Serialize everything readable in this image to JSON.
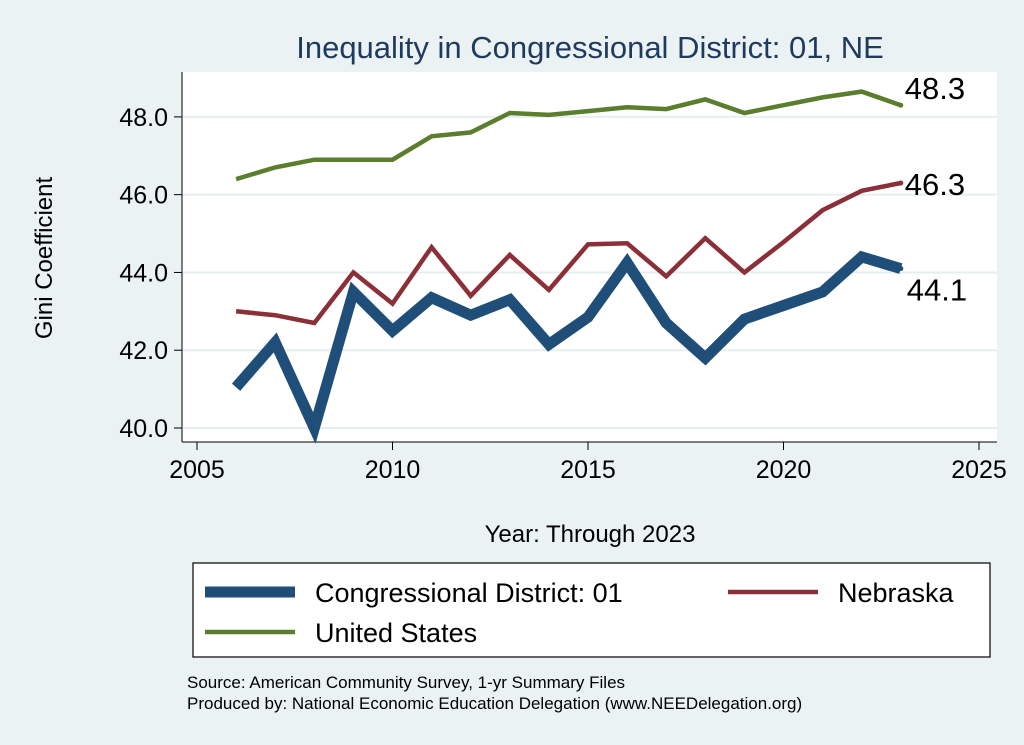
{
  "chart_data": {
    "type": "line",
    "title": "Inequality in Congressional District:  01, NE",
    "xlabel": "Year: Through 2023",
    "ylabel": "Gini Coefficient",
    "xlim": [
      2005,
      2025
    ],
    "ylim": [
      40.0,
      49.0
    ],
    "xticks": [
      "2005",
      "2010",
      "2015",
      "2020",
      "2025"
    ],
    "yticks": [
      "40.0",
      "42.0",
      "44.0",
      "46.0",
      "48.0"
    ],
    "x": [
      2006,
      2007,
      2008,
      2009,
      2010,
      2011,
      2012,
      2013,
      2014,
      2015,
      2016,
      2017,
      2018,
      2019,
      2020,
      2021,
      2022,
      2023
    ],
    "series": [
      {
        "name": "Congressional District:  01",
        "color": "#1f4e79",
        "values": [
          41.05,
          42.2,
          40.0,
          43.5,
          42.5,
          43.35,
          42.9,
          43.3,
          42.15,
          42.85,
          44.25,
          42.7,
          41.8,
          42.8,
          43.15,
          43.5,
          44.4,
          44.1
        ],
        "end_label": "44.1"
      },
      {
        "name": "Nebraska",
        "color": "#8b3038",
        "values": [
          43.0,
          42.9,
          42.7,
          44.0,
          43.2,
          44.65,
          43.4,
          44.45,
          43.55,
          44.72,
          44.75,
          43.9,
          44.88,
          44.0,
          44.78,
          45.6,
          46.1,
          46.3
        ],
        "end_label": "46.3"
      },
      {
        "name": "United States",
        "color": "#5a7d2e",
        "values": [
          46.4,
          46.7,
          46.9,
          46.9,
          46.9,
          47.5,
          47.6,
          48.1,
          48.05,
          48.15,
          48.25,
          48.2,
          48.45,
          48.1,
          48.3,
          48.5,
          48.65,
          48.3
        ],
        "end_label": "48.3"
      }
    ],
    "legend": "bottom",
    "source_lines": [
      "Source: American Community Survey, 1-yr Summary Files",
      "Produced by: National Economic Education Delegation (www.NEEDelegation.org)"
    ]
  }
}
